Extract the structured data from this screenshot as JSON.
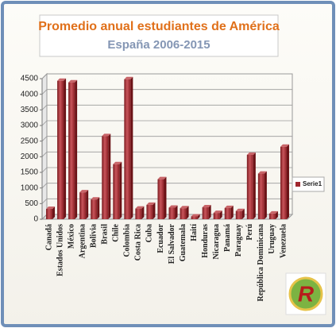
{
  "chart_data": {
    "type": "bar",
    "title": "Promedio anual estudiantes de América",
    "subtitle": "España 2006-2015",
    "categories": [
      "Canadá",
      "Estados Unidos",
      "México",
      "Argentina",
      "Bolivia",
      "Brasil",
      "Chile",
      "Colombia",
      "Costa Rica",
      "Cuba",
      "Ecuador",
      "El Salvador",
      "Guatemala",
      "Haití",
      "Honduras",
      "Nicaragua",
      "Panamá",
      "Paraguay",
      "Perú",
      "República Dominicana",
      "Uruguay",
      "Venezuela"
    ],
    "series": [
      {
        "name": "Serie1",
        "color": "#a0272d",
        "values": [
          330,
          4430,
          4380,
          860,
          630,
          2660,
          1760,
          4480,
          340,
          460,
          1280,
          370,
          350,
          90,
          380,
          200,
          360,
          260,
          2060,
          1460,
          180,
          2320
        ]
      }
    ],
    "ylim": [
      0,
      4500
    ],
    "yticks": [
      0,
      500,
      1000,
      1500,
      2000,
      2500,
      3000,
      3500,
      4000,
      4500
    ],
    "grid": true,
    "legend": "right",
    "logo": "R"
  }
}
